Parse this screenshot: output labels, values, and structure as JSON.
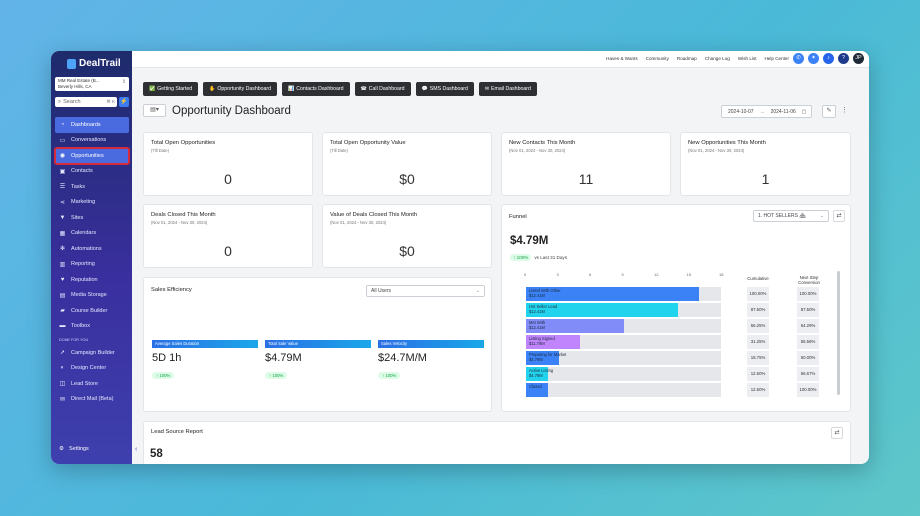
{
  "sidebar": {
    "brand": "DealTrail",
    "location_name": "MM Real Estate (B...",
    "location_city": "Beverly Hills, CA",
    "search_placeholder": "Search",
    "search_kbd": "⌘ K",
    "nav": [
      {
        "label": "Dashboards",
        "icon": "speedometer-icon"
      },
      {
        "label": "Conversations",
        "icon": "chat-icon"
      },
      {
        "label": "Opportunities",
        "icon": "eye-icon"
      },
      {
        "label": "Contacts",
        "icon": "contacts-icon"
      },
      {
        "label": "Tasks",
        "icon": "list-icon"
      },
      {
        "label": "Marketing",
        "icon": "share-icon"
      },
      {
        "label": "Sites",
        "icon": "funnel-icon"
      },
      {
        "label": "Calendars",
        "icon": "calendar-icon"
      },
      {
        "label": "Automations",
        "icon": "gears-icon"
      },
      {
        "label": "Reporting",
        "icon": "chart-icon"
      },
      {
        "label": "Reputation",
        "icon": "heart-icon"
      },
      {
        "label": "Media Storage",
        "icon": "folder-icon"
      },
      {
        "label": "Course Builder",
        "icon": "course-icon"
      },
      {
        "label": "Toolbox",
        "icon": "toolbox-icon"
      }
    ],
    "section_label": "DONE FOR YOU",
    "nav2": [
      {
        "label": "Campaign Builder",
        "icon": "campaign-icon"
      },
      {
        "label": "Design Center",
        "icon": "design-icon"
      },
      {
        "label": "Lead Store",
        "icon": "store-icon"
      },
      {
        "label": "Direct Mail (Beta)",
        "icon": "mail-icon"
      }
    ],
    "settings_label": "Settings"
  },
  "topbar": {
    "links": [
      "Haves & Wants",
      "Community",
      "Roadmap",
      "Change Log",
      "Wish List",
      "Help Center"
    ],
    "avatar_initials": "JP"
  },
  "tabs": [
    "Getting Started",
    "Opportunity Dashboard",
    "Contacts Dashboard",
    "Call Dashboard",
    "SMS Dashboard",
    "Email Dashboard"
  ],
  "dashboard": {
    "title": "Opportunity Dashboard",
    "date_from": "2024-10-07",
    "date_to": "2024-11-06"
  },
  "cards": [
    {
      "title": "Total Open Opportunities",
      "sub": "(Till Date)",
      "value": "0"
    },
    {
      "title": "Total Open Opportunity Value",
      "sub": "(Till Date)",
      "value": "$0"
    },
    {
      "title": "New Contacts This Month",
      "sub": "(Nov 01, 2024 - Nov 30, 2024)",
      "value": "11"
    },
    {
      "title": "New Opportunities This Month",
      "sub": "(Nov 01, 2024 - Nov 30, 2024)",
      "value": "1"
    },
    {
      "title": "Deals Closed This Month",
      "sub": "(Nov 01, 2024 - Nov 30, 2024)",
      "value": "0"
    },
    {
      "title": "Value of Deals Closed This Month",
      "sub": "(Nov 01, 2024 - Nov 30, 2024)",
      "value": "$0"
    }
  ],
  "sales_efficiency": {
    "title": "Sales Efficiency",
    "filter": "All Users",
    "metrics": [
      {
        "label": "Average Sales Duration",
        "value": "5D 1h",
        "change": "100%"
      },
      {
        "label": "Total Sale Value",
        "value": "$4.79M",
        "change": "100%"
      },
      {
        "label": "Sales Velocity",
        "value": "$24.7M/M",
        "change": "100%"
      }
    ]
  },
  "funnel": {
    "title": "Funnel",
    "pipeline": "1. HOT SELLERS 🏘",
    "total": "$4.79M",
    "change": "100%",
    "compare_text": "vs Last 31 Days",
    "axis_ticks": [
      "0",
      "3",
      "6",
      "9",
      "12",
      "15",
      "18"
    ],
    "col_cumulative": "Cumulative",
    "col_next": "Next Step Conversion",
    "stages": [
      {
        "name": "Listed With Other",
        "value": "$12.41M",
        "count": 16,
        "color": "#3b82f6",
        "cumulative": "100.00%",
        "next": "100.00%"
      },
      {
        "name": "Hot Seller Lead",
        "value": "$12.41M",
        "count": 14,
        "color": "#22d3ee",
        "cumulative": "87.50%",
        "next": "87.50%"
      },
      {
        "name": "Met With",
        "value": "$12.41M",
        "count": 9,
        "color": "#818cf8",
        "cumulative": "56.25%",
        "next": "64.29%"
      },
      {
        "name": "Listing Signed",
        "value": "$11.78M",
        "count": 5,
        "color": "#c084fc",
        "cumulative": "31.25%",
        "next": "55.56%"
      },
      {
        "name": "Preparing for Market",
        "value": "$4.79M",
        "count": 3,
        "color": "#3b82f6",
        "cumulative": "18.75%",
        "next": "60.00%"
      },
      {
        "name": "Active Listing",
        "value": "$4.79M",
        "count": 2,
        "color": "#22d3ee",
        "cumulative": "12.50%",
        "next": "66.67%"
      },
      {
        "name": "Closed",
        "value": "",
        "count": 2,
        "color": "#3b82f6",
        "cumulative": "12.50%",
        "next": "100.00%"
      }
    ]
  },
  "lead_source": {
    "title": "Lead Source Report",
    "total": "58"
  }
}
